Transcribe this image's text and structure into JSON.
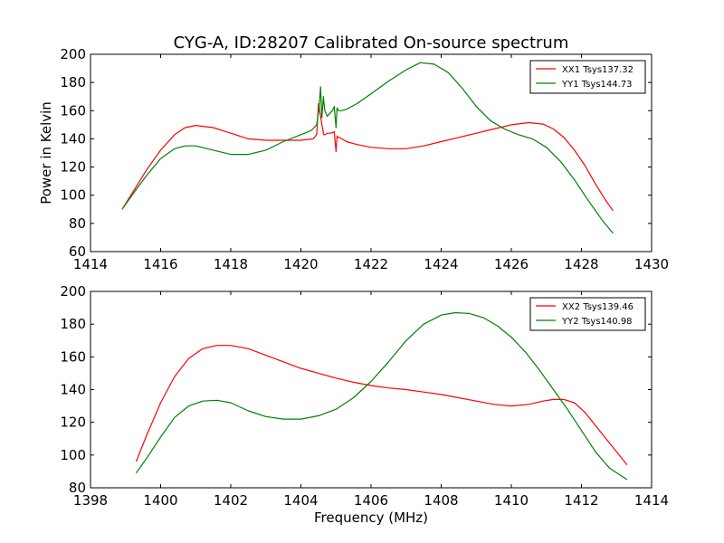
{
  "figure": {
    "title": "CYG-A, ID:28207 Calibrated On-source spectrum"
  },
  "chart_data": [
    {
      "type": "line",
      "title": "CYG-A, ID:28207 Calibrated On-source spectrum",
      "xlabel": "",
      "ylabel": "Power in Kelvin",
      "xlim": [
        1414,
        1430
      ],
      "ylim": [
        60,
        200
      ],
      "xticks": [
        1414,
        1416,
        1418,
        1420,
        1422,
        1424,
        1426,
        1428,
        1430
      ],
      "yticks": [
        60,
        80,
        100,
        120,
        140,
        160,
        180,
        200
      ],
      "grid": false,
      "legend_position": "top-right",
      "series": [
        {
          "name": "XX1 Tsys137.32",
          "color": "#ff0000",
          "x": [
            1414.9,
            1415.3,
            1415.6,
            1416.0,
            1416.4,
            1416.7,
            1417.0,
            1417.5,
            1418.0,
            1418.5,
            1419.0,
            1419.5,
            1420.0,
            1420.35,
            1420.45,
            1420.5,
            1420.55,
            1420.6,
            1420.65,
            1420.7,
            1420.75,
            1420.85,
            1420.95,
            1421.0,
            1421.03,
            1421.06,
            1421.1,
            1421.3,
            1421.6,
            1422.0,
            1422.5,
            1423.0,
            1423.5,
            1424.0,
            1424.5,
            1425.0,
            1425.5,
            1426.0,
            1426.5,
            1426.9,
            1427.2,
            1427.5,
            1427.8,
            1428.1,
            1428.4,
            1428.7,
            1428.9
          ],
          "y": [
            90,
            106,
            118,
            132,
            143,
            148,
            149.5,
            148,
            144,
            140,
            139,
            139,
            139,
            140,
            143,
            165,
            158,
            150,
            143,
            143,
            144,
            144,
            145,
            131,
            142,
            141,
            141,
            138,
            136,
            134,
            133,
            133,
            135,
            138,
            141,
            144,
            147,
            150,
            151.5,
            150.5,
            147,
            141,
            132,
            121,
            108,
            96,
            89
          ]
        },
        {
          "name": "YY1 Tsys144.73",
          "color": "#008000",
          "x": [
            1414.9,
            1415.3,
            1415.6,
            1416.0,
            1416.4,
            1416.7,
            1417.0,
            1417.5,
            1418.0,
            1418.5,
            1419.0,
            1419.5,
            1420.0,
            1420.3,
            1420.45,
            1420.52,
            1420.56,
            1420.6,
            1420.64,
            1420.68,
            1420.75,
            1420.82,
            1420.9,
            1420.95,
            1421.0,
            1421.03,
            1421.07,
            1421.15,
            1421.3,
            1421.6,
            1422.0,
            1422.5,
            1423.0,
            1423.4,
            1423.8,
            1424.2,
            1424.6,
            1425.0,
            1425.4,
            1425.8,
            1426.2,
            1426.6,
            1427.0,
            1427.4,
            1427.8,
            1428.2,
            1428.6,
            1428.9
          ],
          "y": [
            90,
            104,
            114,
            126,
            133,
            135,
            135,
            132,
            129,
            129,
            132,
            138,
            143,
            146,
            150,
            162,
            177,
            155,
            170,
            160,
            156,
            158,
            160,
            163,
            148,
            162,
            160,
            160,
            161,
            165,
            172,
            181,
            189,
            194,
            193,
            187,
            176,
            163,
            153,
            147,
            143,
            140,
            134,
            124,
            111,
            96,
            82,
            73
          ]
        }
      ]
    },
    {
      "type": "line",
      "title": "",
      "xlabel": "Frequency (MHz)",
      "ylabel": "",
      "xlim": [
        1398,
        1414
      ],
      "ylim": [
        80,
        200
      ],
      "xticks": [
        1398,
        1400,
        1402,
        1404,
        1406,
        1408,
        1410,
        1412,
        1414
      ],
      "yticks": [
        80,
        100,
        120,
        140,
        160,
        180,
        200
      ],
      "grid": false,
      "legend_position": "top-right",
      "series": [
        {
          "name": "XX2 Tsys139.46",
          "color": "#ff0000",
          "x": [
            1399.3,
            1399.6,
            1400.0,
            1400.4,
            1400.8,
            1401.2,
            1401.6,
            1402.0,
            1402.5,
            1403.0,
            1403.5,
            1404.0,
            1404.5,
            1405.0,
            1405.5,
            1406.0,
            1406.5,
            1407.0,
            1407.5,
            1408.0,
            1408.5,
            1409.0,
            1409.5,
            1410.0,
            1410.5,
            1410.9,
            1411.2,
            1411.5,
            1411.8,
            1412.1,
            1412.4,
            1412.7,
            1413.0,
            1413.3
          ],
          "y": [
            96,
            112,
            132,
            148,
            159,
            165,
            167,
            167,
            165,
            161,
            157,
            153,
            150,
            147,
            144.5,
            142.5,
            141,
            140,
            138.5,
            137,
            135,
            133,
            131,
            130,
            131,
            133,
            134,
            134,
            132,
            126,
            118,
            110,
            102,
            94
          ]
        },
        {
          "name": "YY2 Tsys140.98",
          "color": "#008000",
          "x": [
            1399.3,
            1399.6,
            1400.0,
            1400.4,
            1400.8,
            1401.2,
            1401.6,
            1402.0,
            1402.5,
            1403.0,
            1403.5,
            1404.0,
            1404.5,
            1405.0,
            1405.5,
            1406.0,
            1406.5,
            1407.0,
            1407.5,
            1408.0,
            1408.4,
            1408.8,
            1409.2,
            1409.6,
            1410.0,
            1410.4,
            1410.8,
            1411.2,
            1411.6,
            1412.0,
            1412.4,
            1412.8,
            1413.3
          ],
          "y": [
            89,
            98,
            111,
            123,
            130,
            133,
            133.5,
            132,
            127,
            123.5,
            122,
            122,
            124,
            128,
            135,
            145,
            157,
            170,
            180,
            185.5,
            187,
            186.5,
            184,
            179,
            172,
            163,
            152,
            140,
            128,
            115,
            102,
            92,
            85
          ]
        }
      ]
    }
  ]
}
